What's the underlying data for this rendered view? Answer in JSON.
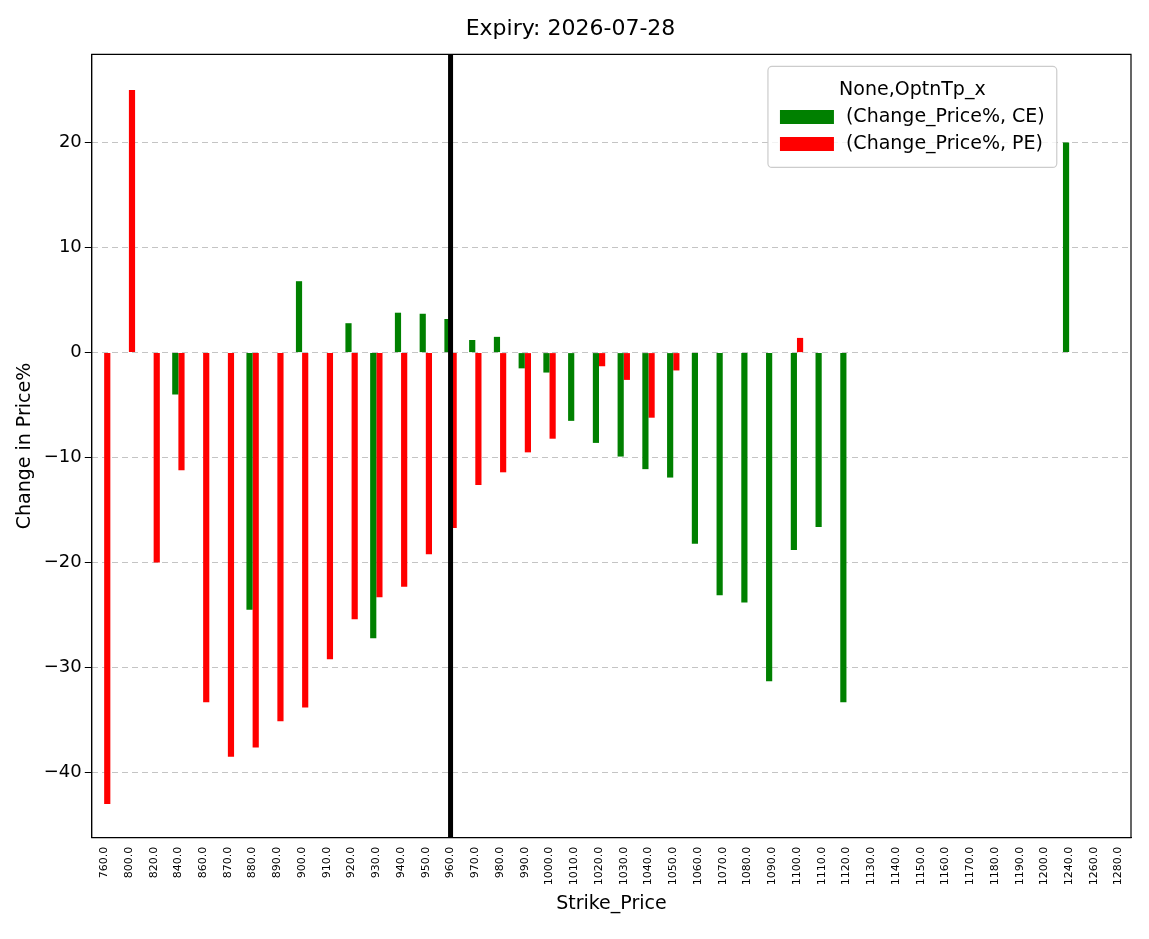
{
  "chart_data": {
    "type": "bar",
    "title": "Expiry: 2026-07-28",
    "xlabel": "Strike_Price",
    "ylabel": "Change in Price%",
    "legend_title": "None,OptnTp_x",
    "categories": [
      "760.0",
      "800.0",
      "820.0",
      "840.0",
      "860.0",
      "870.0",
      "880.0",
      "890.0",
      "900.0",
      "910.0",
      "920.0",
      "930.0",
      "940.0",
      "950.0",
      "960.0",
      "970.0",
      "980.0",
      "990.0",
      "1000.0",
      "1010.0",
      "1020.0",
      "1030.0",
      "1040.0",
      "1050.0",
      "1060.0",
      "1070.0",
      "1080.0",
      "1090.0",
      "1100.0",
      "1110.0",
      "1120.0",
      "1130.0",
      "1140.0",
      "1150.0",
      "1160.0",
      "1170.0",
      "1180.0",
      "1190.0",
      "1200.0",
      "1240.0",
      "1260.0",
      "1280.0"
    ],
    "series": [
      {
        "name": "(Change_Price%, CE)",
        "color": "#008000",
        "values": [
          null,
          null,
          null,
          -4,
          null,
          null,
          -24.5,
          null,
          6.8,
          null,
          2.8,
          -27.2,
          3.8,
          3.7,
          3.2,
          1.2,
          1.5,
          -1.5,
          -1.9,
          -6.5,
          -8.6,
          -9.9,
          -11.1,
          -11.9,
          -18.2,
          -23.1,
          -23.8,
          -31.3,
          -18.8,
          -16.6,
          -33.3,
          null,
          null,
          null,
          null,
          null,
          null,
          null,
          null,
          20,
          null,
          null
        ]
      },
      {
        "name": "(Change_Price%, PE)",
        "color": "#ff0000",
        "values": [
          -43,
          25,
          -20,
          -11.2,
          -33.3,
          -38.5,
          -37.6,
          -35.1,
          -33.8,
          -29.2,
          -25.4,
          -23.3,
          -22.3,
          -19.2,
          -16.7,
          -12.6,
          -11.4,
          -9.5,
          -8.2,
          null,
          -1.3,
          -2.6,
          -6.2,
          -1.7,
          null,
          null,
          null,
          null,
          1.4,
          null,
          null,
          null,
          null,
          null,
          null,
          null,
          null,
          null,
          null,
          null,
          null,
          null
        ]
      }
    ],
    "ylim": [
      -46.2,
      28.4
    ],
    "yticks": [
      -40,
      -30,
      -20,
      -10,
      0,
      10,
      20
    ],
    "grid": "y",
    "legend": "top right",
    "ref_lines": [
      {
        "axis": "x",
        "value": "960.0",
        "color": "#000000"
      }
    ]
  }
}
